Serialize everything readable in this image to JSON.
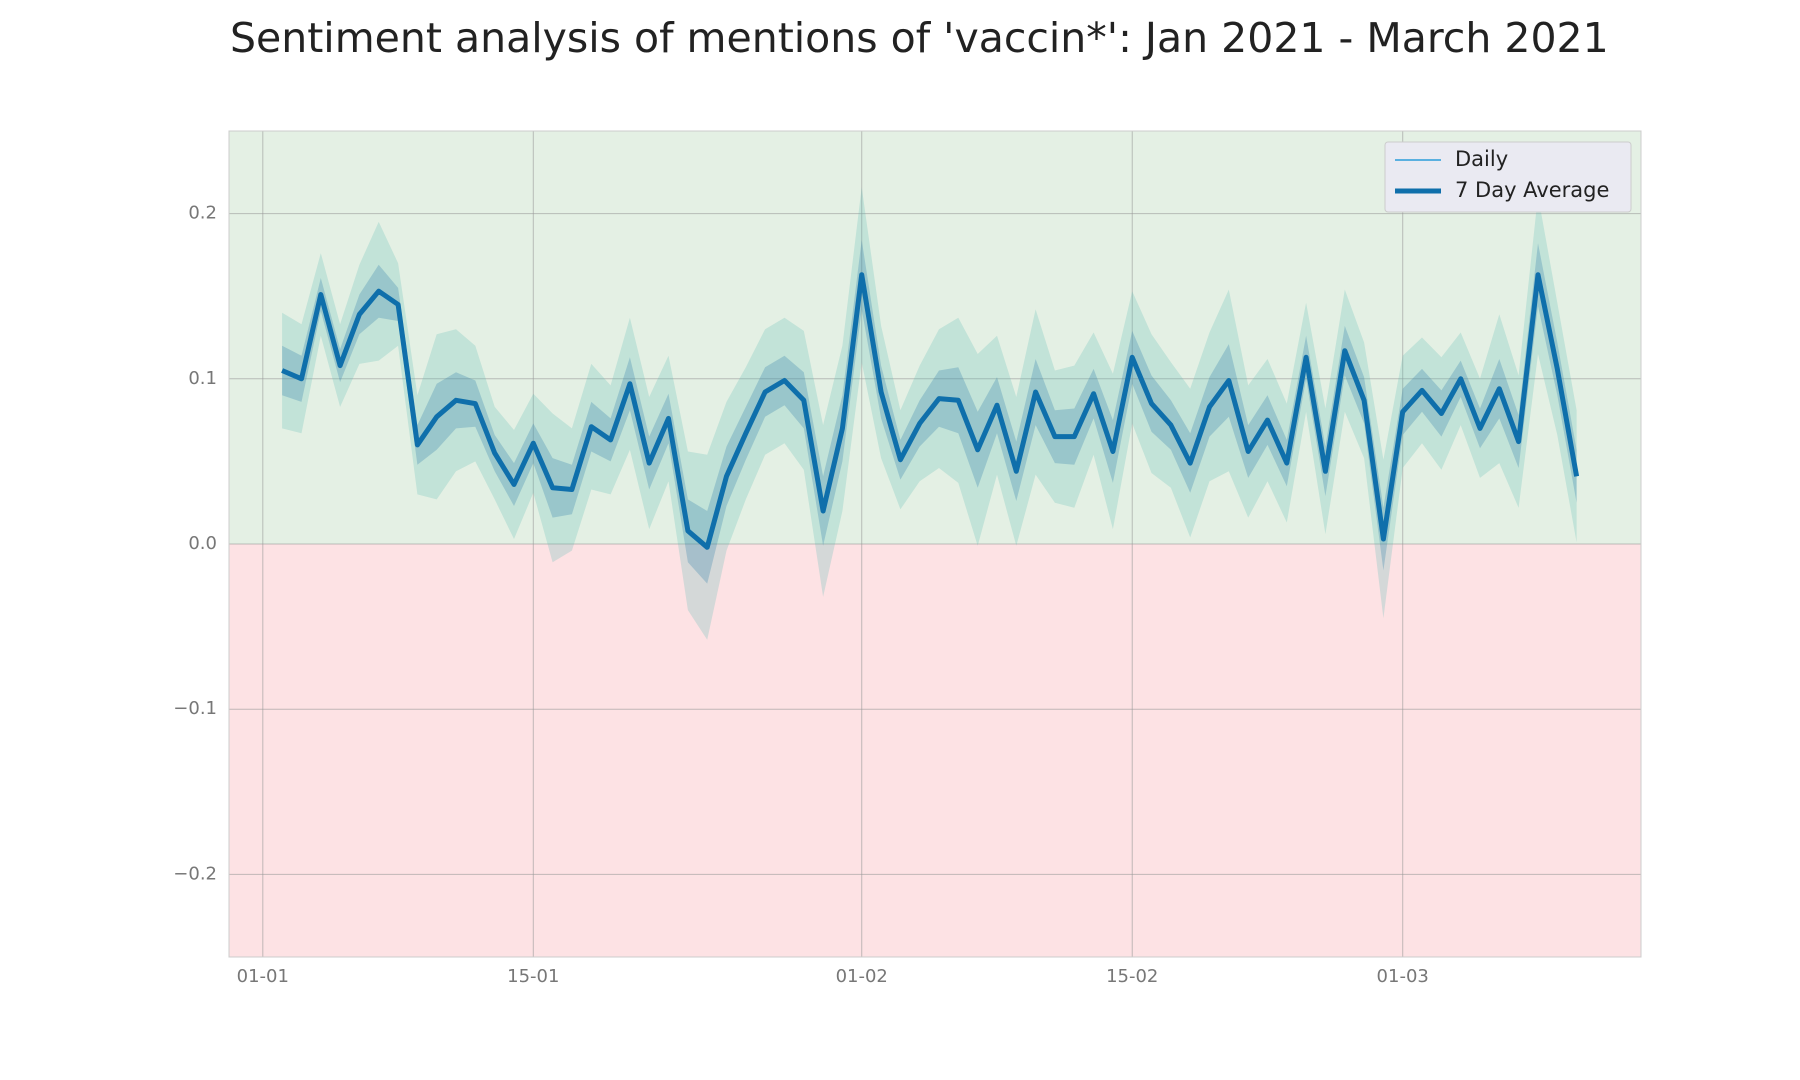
{
  "chart_data": {
    "type": "line",
    "title": "Sentiment analysis of mentions of 'vaccin*': Jan 2021 - March 2021",
    "x": [
      "2021-01-02",
      "2021-01-03",
      "2021-01-04",
      "2021-01-05",
      "2021-01-06",
      "2021-01-07",
      "2021-01-08",
      "2021-01-09",
      "2021-01-10",
      "2021-01-11",
      "2021-01-12",
      "2021-01-13",
      "2021-01-14",
      "2021-01-15",
      "2021-01-16",
      "2021-01-17",
      "2021-01-18",
      "2021-01-19",
      "2021-01-20",
      "2021-01-21",
      "2021-01-22",
      "2021-01-23",
      "2021-01-24",
      "2021-01-25",
      "2021-01-26",
      "2021-01-27",
      "2021-01-28",
      "2021-01-29",
      "2021-01-30",
      "2021-01-31",
      "2021-02-01",
      "2021-02-02",
      "2021-02-03",
      "2021-02-04",
      "2021-02-05",
      "2021-02-06",
      "2021-02-07",
      "2021-02-08",
      "2021-02-09",
      "2021-02-10",
      "2021-02-11",
      "2021-02-12",
      "2021-02-13",
      "2021-02-14",
      "2021-02-15",
      "2021-02-16",
      "2021-02-17",
      "2021-02-18",
      "2021-02-19",
      "2021-02-20",
      "2021-02-21",
      "2021-02-22",
      "2021-02-23",
      "2021-02-24",
      "2021-02-25",
      "2021-02-26",
      "2021-02-27",
      "2021-02-28",
      "2021-03-01",
      "2021-03-02",
      "2021-03-03",
      "2021-03-04",
      "2021-03-05",
      "2021-03-06",
      "2021-03-07",
      "2021-03-08",
      "2021-03-09",
      "2021-03-10"
    ],
    "series": [
      {
        "name": "Daily",
        "color": "#5ab0e0",
        "values": [
          0.105,
          0.1,
          0.151,
          0.108,
          0.139,
          0.153,
          0.145,
          0.06,
          0.077,
          0.087,
          0.085,
          0.055,
          0.036,
          0.061,
          0.034,
          0.033,
          0.071,
          0.063,
          0.097,
          0.049,
          0.076,
          0.008,
          -0.002,
          0.041,
          0.067,
          0.092,
          0.099,
          0.087,
          0.02,
          0.07,
          0.163,
          0.092,
          0.051,
          0.073,
          0.088,
          0.087,
          0.057,
          0.084,
          0.044,
          0.092,
          0.065,
          0.065,
          0.091,
          0.056,
          0.113,
          0.085,
          0.072,
          0.049,
          0.083,
          0.099,
          0.056,
          0.075,
          0.049,
          0.113,
          0.044,
          0.117,
          0.087,
          0.003,
          0.08,
          0.093,
          0.079,
          0.1,
          0.07,
          0.094,
          0.062,
          0.163,
          0.106,
          0.041
        ]
      },
      {
        "name": "7 Day Average",
        "color": "#0f6fab",
        "values": [
          0.105,
          0.1,
          0.151,
          0.108,
          0.139,
          0.153,
          0.145,
          0.06,
          0.077,
          0.087,
          0.085,
          0.055,
          0.036,
          0.061,
          0.034,
          0.033,
          0.071,
          0.063,
          0.097,
          0.049,
          0.076,
          0.008,
          -0.002,
          0.041,
          0.067,
          0.092,
          0.099,
          0.087,
          0.02,
          0.07,
          0.163,
          0.092,
          0.051,
          0.073,
          0.088,
          0.087,
          0.057,
          0.084,
          0.044,
          0.092,
          0.065,
          0.065,
          0.091,
          0.056,
          0.113,
          0.085,
          0.072,
          0.049,
          0.083,
          0.099,
          0.056,
          0.075,
          0.049,
          0.113,
          0.044,
          0.117,
          0.087,
          0.003,
          0.08,
          0.093,
          0.079,
          0.1,
          0.07,
          0.094,
          0.062,
          0.163,
          0.106,
          0.041
        ],
        "ci_outer": [
          0.035,
          0.033,
          0.025,
          0.025,
          0.03,
          0.042,
          0.025,
          0.03,
          0.05,
          0.043,
          0.035,
          0.028,
          0.033,
          0.03,
          0.045,
          0.037,
          0.038,
          0.033,
          0.04,
          0.04,
          0.038,
          0.048,
          0.056,
          0.045,
          0.04,
          0.038,
          0.038,
          0.042,
          0.052,
          0.05,
          0.053,
          0.04,
          0.03,
          0.035,
          0.042,
          0.05,
          0.058,
          0.042,
          0.045,
          0.05,
          0.04,
          0.043,
          0.037,
          0.047,
          0.04,
          0.042,
          0.038,
          0.045,
          0.045,
          0.055,
          0.04,
          0.037,
          0.036,
          0.033,
          0.038,
          0.037,
          0.035,
          0.048,
          0.034,
          0.032,
          0.034,
          0.028,
          0.03,
          0.045,
          0.04,
          0.048,
          0.04,
          0.04
        ],
        "ci_inner": [
          0.015,
          0.014,
          0.01,
          0.01,
          0.012,
          0.016,
          0.01,
          0.012,
          0.02,
          0.017,
          0.014,
          0.011,
          0.013,
          0.012,
          0.018,
          0.015,
          0.015,
          0.013,
          0.016,
          0.016,
          0.015,
          0.019,
          0.022,
          0.018,
          0.016,
          0.015,
          0.015,
          0.017,
          0.021,
          0.02,
          0.021,
          0.016,
          0.012,
          0.014,
          0.017,
          0.02,
          0.023,
          0.017,
          0.018,
          0.02,
          0.016,
          0.017,
          0.015,
          0.019,
          0.016,
          0.017,
          0.015,
          0.018,
          0.018,
          0.022,
          0.016,
          0.015,
          0.014,
          0.013,
          0.015,
          0.015,
          0.014,
          0.019,
          0.014,
          0.013,
          0.014,
          0.011,
          0.012,
          0.018,
          0.016,
          0.019,
          0.016,
          0.016
        ],
        "ci_outer_color": "#5bbcb4",
        "ci_inner_color": "#3a86ad"
      }
    ],
    "xlim": [
      "2020-12-30T06:00",
      "2021-03-13T08:00"
    ],
    "xticks": [
      {
        "value": "2021-01-01",
        "label": "01-01"
      },
      {
        "value": "2021-01-15",
        "label": "15-01"
      },
      {
        "value": "2021-02-01",
        "label": "01-02"
      },
      {
        "value": "2021-02-15",
        "label": "15-02"
      },
      {
        "value": "2021-03-01",
        "label": "01-03"
      }
    ],
    "ylim": [
      -0.25,
      0.25
    ],
    "yticks": [
      {
        "value": -0.2,
        "label": "−0.2"
      },
      {
        "value": -0.1,
        "label": "−0.1"
      },
      {
        "value": 0,
        "label": "0.0"
      },
      0.1,
      0.2
    ],
    "grid": true,
    "legend": "upper right",
    "positive_color": "#e4f0e4",
    "negative_color": "#fde2e4"
  }
}
